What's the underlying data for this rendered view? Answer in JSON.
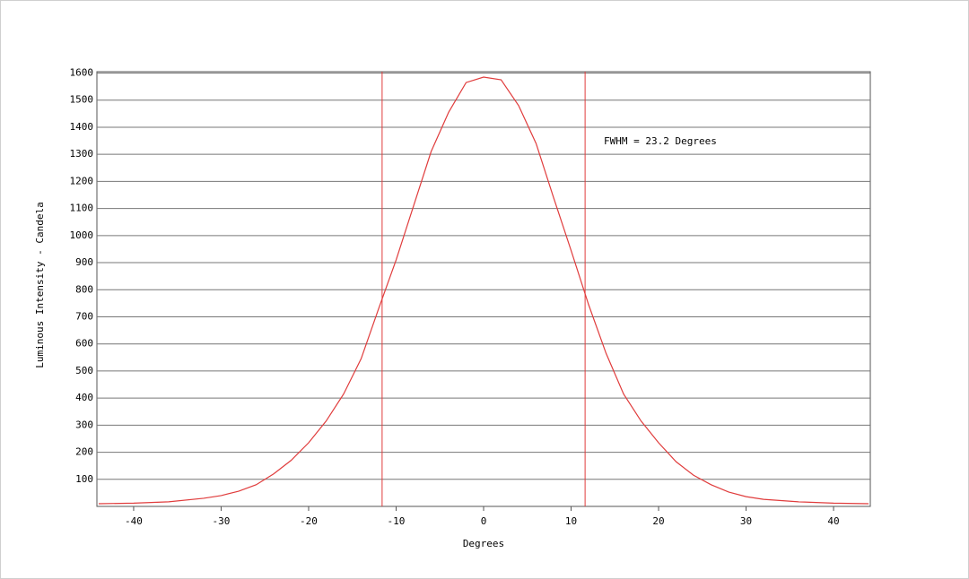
{
  "chart_data": {
    "type": "line",
    "annotation": "FWHM = 23.2 Degrees",
    "x_label": "Degrees",
    "y_label": "Luminous Intensity - Candela",
    "x": [
      -44,
      -40,
      -36,
      -32,
      -30,
      -28,
      -26,
      -24,
      -22,
      -20,
      -18,
      -16,
      -14,
      -12,
      -10,
      -8,
      -6,
      -4,
      -2,
      0,
      2,
      4,
      6,
      8,
      10,
      12,
      14,
      16,
      18,
      20,
      22,
      24,
      26,
      28,
      30,
      32,
      36,
      40,
      44
    ],
    "series": [
      {
        "name": "Luminous Intensity",
        "color": "#e03c3c",
        "values": [
          10,
          12,
          17,
          30,
          40,
          56,
          80,
          120,
          170,
          235,
          315,
          415,
          545,
          730,
          910,
          1110,
          1310,
          1455,
          1565,
          1585,
          1575,
          1480,
          1340,
          1140,
          945,
          745,
          565,
          415,
          315,
          235,
          165,
          115,
          80,
          53,
          36,
          26,
          17,
          12,
          10
        ]
      }
    ],
    "vlines": [
      -11.6,
      11.6
    ],
    "xlim": [
      -44.2,
      44.2
    ],
    "ylim": [
      0,
      1605
    ],
    "xticks": [
      -40,
      -30,
      -20,
      -10,
      0,
      10,
      20,
      30,
      40
    ],
    "yticks": [
      100,
      200,
      300,
      400,
      500,
      600,
      700,
      800,
      900,
      1000,
      1100,
      1200,
      1300,
      1400,
      1500,
      1600
    ],
    "grid": true
  }
}
